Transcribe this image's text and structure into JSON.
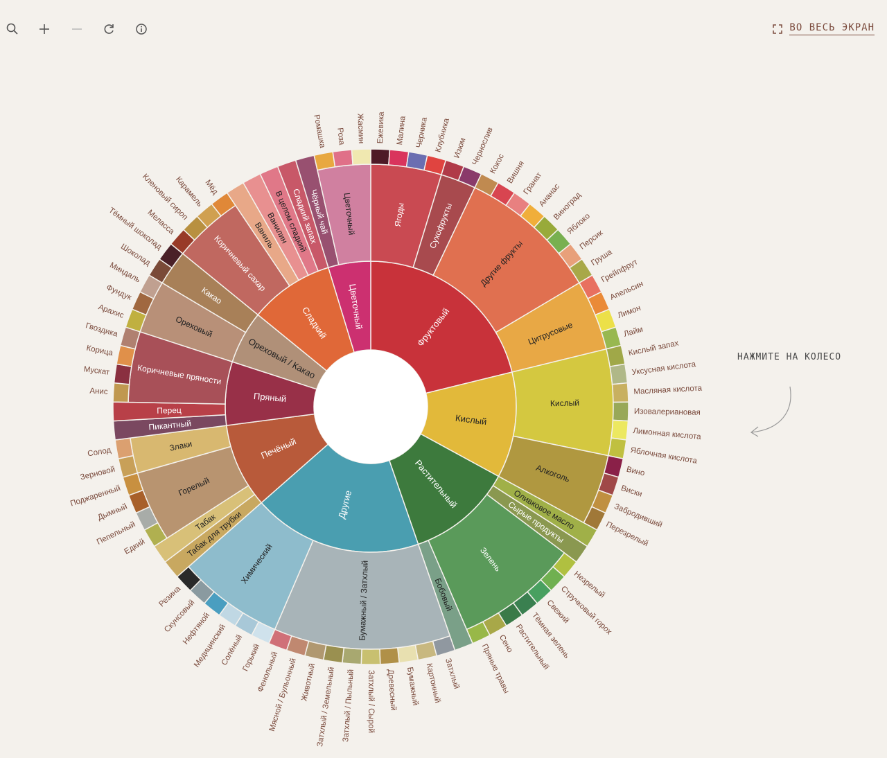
{
  "toolbar": {
    "icons": [
      "search-icon",
      "zoom-in-icon",
      "zoom-out-icon",
      "reload-icon",
      "info-icon"
    ]
  },
  "fullscreen": {
    "label": "ВО ВЕСЬ ЭКРАН",
    "icon": "expand-icon"
  },
  "hint": {
    "label": "НАЖМИТЕ НА КОЛЕСО"
  },
  "chart_data": {
    "type": "sunburst",
    "start_angle_deg": 0,
    "clockwise": true,
    "categories": [
      {
        "name": "Фруктовый",
        "color": "#c8323a",
        "children": [
          {
            "name": "Ягоды",
            "color": "#c94a52",
            "children": [
              {
                "name": "Ежевика",
                "color": "#4e1a26"
              },
              {
                "name": "Малина",
                "color": "#d9345c"
              },
              {
                "name": "Черника",
                "color": "#6b6eb1"
              },
              {
                "name": "Клубника",
                "color": "#e04440"
              }
            ]
          },
          {
            "name": "Сухофрукты",
            "color": "#a84a4e",
            "children": [
              {
                "name": "Изюм",
                "color": "#b03a48"
              },
              {
                "name": "Чернослив",
                "color": "#8a3a6a"
              }
            ]
          },
          {
            "name": "Другие фрукты",
            "color": "#e07050",
            "children": [
              {
                "name": "Кокос",
                "color": "#c08a50"
              },
              {
                "name": "Вишня",
                "color": "#d84550"
              },
              {
                "name": "Гранат",
                "color": "#e88080"
              },
              {
                "name": "Ананас",
                "color": "#f0ae3a"
              },
              {
                "name": "Виноград",
                "color": "#98aa3a"
              },
              {
                "name": "Яблоко",
                "color": "#78b050"
              },
              {
                "name": "Персик",
                "color": "#e8a07a"
              },
              {
                "name": "Груша",
                "color": "#a8a848"
              }
            ]
          },
          {
            "name": "Цитрусовые",
            "color": "#e8a845",
            "children": [
              {
                "name": "Грейпфрут",
                "color": "#e87060"
              },
              {
                "name": "Апельсин",
                "color": "#ea8a38"
              },
              {
                "name": "Лимон",
                "color": "#ece048"
              },
              {
                "name": "Лайм",
                "color": "#98b850"
              }
            ]
          }
        ]
      },
      {
        "name": "Кислый",
        "color": "#e2b93a",
        "children": [
          {
            "name": "Кислый",
            "color": "#d4c840",
            "children": [
              {
                "name": "Кислый запах",
                "color": "#a0a848"
              },
              {
                "name": "Уксусная кислота",
                "color": "#b0b888"
              },
              {
                "name": "Масляная кислота",
                "color": "#c8b060"
              },
              {
                "name": "Изовалериановая",
                "color": "#98a858"
              },
              {
                "name": "Лимонная кислота",
                "color": "#ece860"
              },
              {
                "name": "Яблочная кислота",
                "color": "#c0c040"
              }
            ]
          },
          {
            "name": "Алкоголь",
            "color": "#b09840",
            "children": [
              {
                "name": "Вино",
                "color": "#8a2048"
              },
              {
                "name": "Виски",
                "color": "#a04848"
              },
              {
                "name": "Забродивший",
                "color": "#c09040"
              },
              {
                "name": "Перезрелый",
                "color": "#a07838"
              }
            ]
          }
        ]
      },
      {
        "name": "Растительный",
        "color": "#3d7a3d",
        "children": [
          {
            "name": "Оливковое масло",
            "color": "#a0b048",
            "children": []
          },
          {
            "name": "Сырые продукты",
            "color": "#8a9850",
            "children": []
          },
          {
            "name": "Зелень",
            "color": "#5a9a5a",
            "children": [
              {
                "name": "Незрелый",
                "color": "#b0c040"
              },
              {
                "name": "Стручковый горох",
                "color": "#70b050"
              },
              {
                "name": "Свежий",
                "color": "#48a060"
              },
              {
                "name": "Тёмная зелень",
                "color": "#3a8050"
              },
              {
                "name": "Растительный",
                "color": "#3a7a48"
              },
              {
                "name": "Сено",
                "color": "#a8a848"
              },
              {
                "name": "Пряные травы",
                "color": "#98b848"
              }
            ]
          },
          {
            "name": "Бобовый",
            "color": "#7aa088",
            "children": []
          }
        ]
      },
      {
        "name": "Другие",
        "color": "#4a9eb0",
        "children": [
          {
            "name": "Бумажный / Затхлый",
            "color": "#a8b4b8",
            "children": [
              {
                "name": "Затхлый",
                "color": "#9098a0"
              },
              {
                "name": "Картонный",
                "color": "#c8b880"
              },
              {
                "name": "Бумажный",
                "color": "#e8e0b0"
              },
              {
                "name": "Древесный",
                "color": "#b09048"
              },
              {
                "name": "Затхлый / Сырой",
                "color": "#c8c070"
              },
              {
                "name": "Затхлый / Пыльный",
                "color": "#a8a870"
              },
              {
                "name": "Затхлый / Земельный",
                "color": "#9a9050"
              },
              {
                "name": "Животный",
                "color": "#b09870"
              },
              {
                "name": "Мясной / Бульонный",
                "color": "#c08870"
              },
              {
                "name": "Фенольный",
                "color": "#d07078"
              }
            ]
          },
          {
            "name": "Химический",
            "color": "#8ebccc",
            "children": [
              {
                "name": "Горький",
                "color": "#cfe2ec"
              },
              {
                "name": "Солёный",
                "color": "#a8c8d8"
              },
              {
                "name": "Медицинский",
                "color": "#c0d8e4"
              },
              {
                "name": "Нефтяной",
                "color": "#4a9ec0"
              },
              {
                "name": "Скунсовый",
                "color": "#8a9aa0"
              },
              {
                "name": "Резина",
                "color": "#2a2a2a"
              }
            ]
          }
        ]
      },
      {
        "name": "Печёный",
        "color": "#b85a3a",
        "children": [
          {
            "name": "Табак для трубки",
            "color": "#c8a860",
            "children": []
          },
          {
            "name": "Табак",
            "color": "#d8c078",
            "children": []
          },
          {
            "name": "Горелый",
            "color": "#b89470",
            "children": [
              {
                "name": "Едкий",
                "color": "#b0b050"
              },
              {
                "name": "Пепельный",
                "color": "#a8aca8"
              },
              {
                "name": "Дымный",
                "color": "#a8602a"
              },
              {
                "name": "Поджаренный",
                "color": "#c89040"
              }
            ]
          },
          {
            "name": "Злаки",
            "color": "#d8b870",
            "children": [
              {
                "name": "Зерновой",
                "color": "#c8a058"
              },
              {
                "name": "Солод",
                "color": "#dba070"
              }
            ]
          }
        ]
      },
      {
        "name": "Пряный",
        "color": "#983048",
        "children": [
          {
            "name": "Пикантный",
            "color": "#7a4860",
            "children": []
          },
          {
            "name": "Перец",
            "color": "#b84048",
            "children": []
          },
          {
            "name": "Коричневые пряности",
            "color": "#a85058",
            "children": [
              {
                "name": "Анис",
                "color": "#c09850"
              },
              {
                "name": "Мускат",
                "color": "#8a3040"
              },
              {
                "name": "Корица",
                "color": "#e0904a"
              },
              {
                "name": "Гвоздика",
                "color": "#b08070"
              }
            ]
          }
        ]
      },
      {
        "name": "Ореховый / Какао",
        "color": "#b09078",
        "children": [
          {
            "name": "Ореховый",
            "color": "#b89078",
            "children": [
              {
                "name": "Арахис",
                "color": "#c0b040"
              },
              {
                "name": "Фундук",
                "color": "#a06840"
              },
              {
                "name": "Миндаль",
                "color": "#c0a090"
              }
            ]
          },
          {
            "name": "Какао",
            "color": "#a88058",
            "children": [
              {
                "name": "Шоколад",
                "color": "#7a4a38"
              },
              {
                "name": "Тёмный шоколад",
                "color": "#4a2028"
              }
            ]
          }
        ]
      },
      {
        "name": "Сладкий",
        "color": "#e06838",
        "children": [
          {
            "name": "Коричневый сахар",
            "color": "#c06860",
            "children": [
              {
                "name": "Меласса",
                "color": "#983a28"
              },
              {
                "name": "Кленовый сироп",
                "color": "#b89040"
              },
              {
                "name": "Карамель",
                "color": "#d0a050"
              },
              {
                "name": "Мёд",
                "color": "#e08838"
              }
            ]
          },
          {
            "name": "Ваниль",
            "color": "#e8a888",
            "children": []
          },
          {
            "name": "Ванилин",
            "color": "#e89090",
            "children": []
          },
          {
            "name": "В целом сладкий",
            "color": "#e07888",
            "children": []
          },
          {
            "name": "Сладкий запах",
            "color": "#c85868",
            "children": []
          }
        ]
      },
      {
        "name": "Цветочный",
        "color": "#cc3070",
        "children": [
          {
            "name": "Чёрный чай",
            "color": "#985070",
            "children": []
          },
          {
            "name": "Цветочный",
            "color": "#d080a0",
            "children": [
              {
                "name": "Ромашка",
                "color": "#e8a840"
              },
              {
                "name": "Роза",
                "color": "#e07088"
              },
              {
                "name": "Жасмин",
                "color": "#f0e8b0"
              }
            ]
          }
        ]
      }
    ]
  }
}
